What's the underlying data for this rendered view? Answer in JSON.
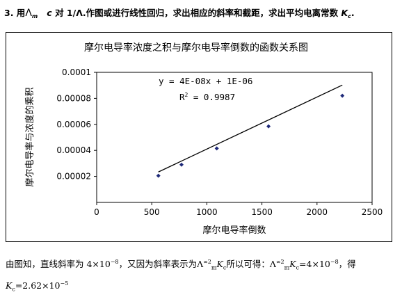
{
  "question": {
    "number": "3. 用",
    "lambda_symbol": "Λ",
    "lambda_sub": "m",
    "c_symbol": "c",
    "text": "对 1/Λ.作图或进行线性回归，求出相应的斜率和截距，求出平均电离常数",
    "k_symbol": "K",
    "k_sub": "c",
    "end": "."
  },
  "chart_data": {
    "type": "scatter",
    "title": "摩尔电导率浓度之积与摩尔电导率倒数的函数关系图",
    "xlabel": "摩尔电导率倒数",
    "ylabel": "摩尔电导率与浓度的乘积",
    "xlim": [
      0,
      2500
    ],
    "ylim": [
      0,
      0.0001
    ],
    "x_ticks": [
      0,
      500,
      1000,
      1500,
      2000,
      2500
    ],
    "x_tick_labels": [
      "0",
      "500",
      "1000",
      "1500",
      "2000",
      "2500"
    ],
    "y_ticks": [
      2e-05,
      4e-05,
      6e-05,
      8e-05,
      0.0001
    ],
    "y_tick_labels": [
      "0.00002",
      "0.00004",
      "0.00006",
      "0.00008",
      "0.0001"
    ],
    "grid": false,
    "series": [
      {
        "x": [
          560,
          770,
          1090,
          1560,
          2230
        ],
        "y": [
          2.05e-05,
          2.9e-05,
          4.15e-05,
          5.85e-05,
          8.2e-05
        ]
      }
    ],
    "trendline": {
      "slope": 4e-08,
      "intercept": 1e-06,
      "x_range": [
        560,
        2230
      ]
    },
    "annotation_equation": "y = 4E-08x + 1E-06",
    "annotation_r2_prefix": "R",
    "annotation_r2_exp": "2",
    "annotation_r2_value": " = 0.9987",
    "colors": {
      "marker": "#1f2a7a",
      "line": "#000000"
    }
  },
  "conclusion": {
    "line1": "由图知，直线斜率为 4×10",
    "line1_exp": "−8",
    "line1_b": "，又因为斜率表示为Λ",
    "lambda_sup": "∞2",
    "lambda_sub": "m",
    "k_symbol": "K",
    "k_sub": "c",
    "line1_c": "所以可得：Λ",
    "line1_d": "=4×10",
    "line1_d_exp": "−8",
    "line1_e": "，得",
    "line2_k": "K",
    "line2_k_sub": "c",
    "line2_val": "=2.62×10",
    "line2_exp": "−5"
  }
}
